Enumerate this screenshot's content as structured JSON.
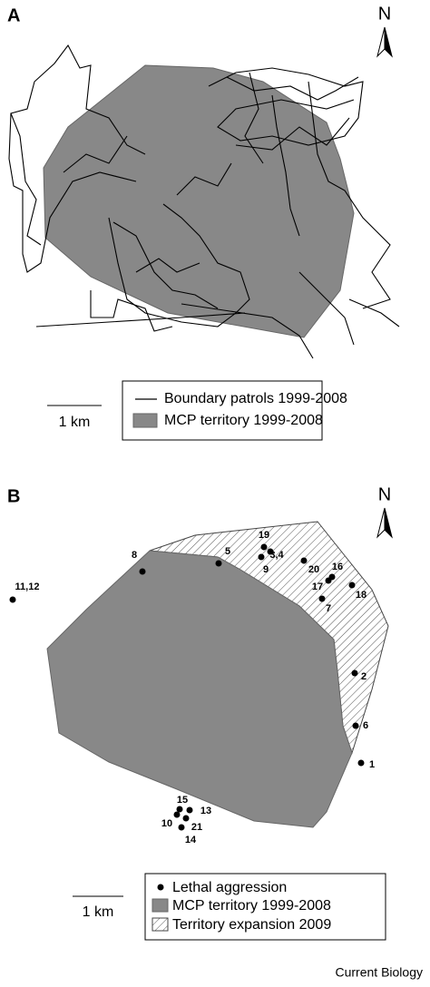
{
  "panels": [
    {
      "label": "A",
      "north": "N",
      "legend": [
        "Boundary patrols 1999-2008",
        "MCP territory 1999-2008"
      ],
      "scale": "1 km"
    },
    {
      "label": "B",
      "north": "N",
      "legend": [
        "Lethal aggression",
        "MCP territory 1999-2008",
        "Territory expansion 2009"
      ],
      "scale": "1 km",
      "points": [
        "19",
        "3,4",
        "9",
        "5",
        "8",
        "20",
        "16",
        "17",
        "18",
        "7",
        "11,12",
        "2",
        "6",
        "1",
        "15",
        "13",
        "10",
        "21",
        "14"
      ]
    }
  ],
  "credit": "Current Biology"
}
